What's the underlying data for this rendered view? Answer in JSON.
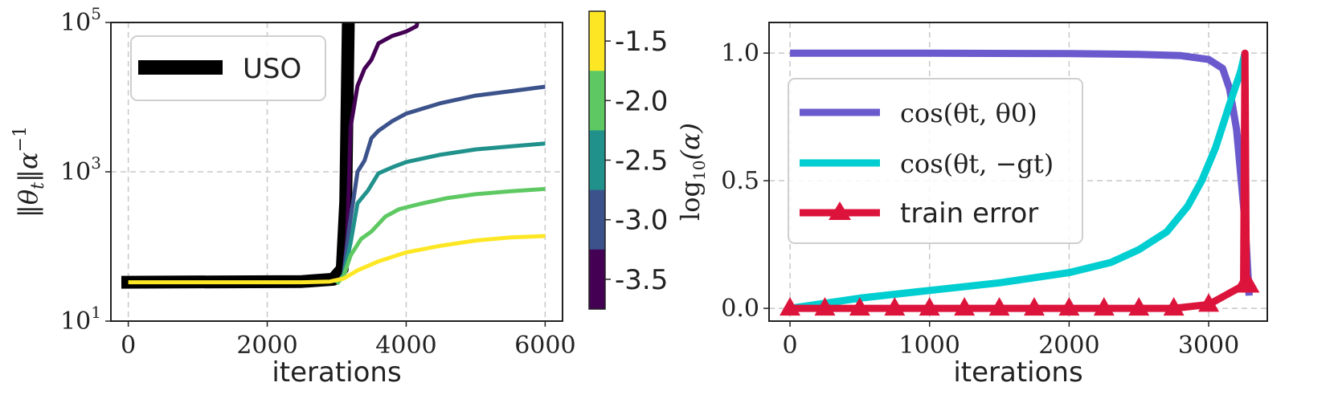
{
  "chart_data": [
    {
      "type": "line",
      "title": "",
      "xlabel": "iterations",
      "ylabel": "‖θt‖α⁻¹",
      "ylabel_parts": {
        "main": "‖θ",
        "sub": "t",
        "mid": "‖α",
        "sup": "−1"
      },
      "yscale": "log",
      "xlim": [
        -250,
        6250
      ],
      "ylim_log10": [
        1,
        5
      ],
      "xticks": [
        0,
        2000,
        4000,
        6000
      ],
      "xtick_labels": [
        "0",
        "2000",
        "4000",
        "6000"
      ],
      "yticks_log10": [
        1,
        3,
        5
      ],
      "ytick_labels": [
        {
          "base": "10",
          "exp": "1"
        },
        {
          "base": "10",
          "exp": "3"
        },
        {
          "base": "10",
          "exp": "5"
        }
      ],
      "legend": {
        "position": "top-left",
        "entries": [
          {
            "label": "USO",
            "color": "#000000"
          }
        ]
      },
      "colorbar": {
        "label": "log10(α)",
        "label_parts": {
          "fn": "log",
          "sub": "10",
          "arg": "(α)"
        },
        "ticks": [
          "-1.5",
          "-2.0",
          "-2.5",
          "-3.0",
          "-3.5"
        ],
        "bands_top_to_bottom": [
          "#fde725",
          "#5ec962",
          "#21918c",
          "#3b528b",
          "#440154"
        ]
      },
      "series": [
        {
          "name": "USO",
          "color": "#000000",
          "points": [
            [
              -100,
              1.52
            ],
            [
              2500,
              1.53
            ],
            [
              2950,
              1.56
            ],
            [
              3080,
              1.7
            ],
            [
              3130,
              2.6
            ],
            [
              3170,
              5.2
            ]
          ]
        },
        {
          "name": "log10(α) = -3.5",
          "color": "#440154",
          "points": [
            [
              3000,
              1.5
            ],
            [
              3100,
              1.62
            ],
            [
              3150,
              2.1
            ],
            [
              3200,
              3.6
            ],
            [
              3300,
              4.15
            ],
            [
              3400,
              4.38
            ],
            [
              3500,
              4.5
            ],
            [
              3600,
              4.72
            ],
            [
              3800,
              4.82
            ],
            [
              4000,
              4.88
            ],
            [
              4150,
              4.95
            ],
            [
              4200,
              5.2
            ]
          ]
        },
        {
          "name": "log10(α) = -3.0",
          "color": "#3b528b",
          "points": [
            [
              3000,
              1.5
            ],
            [
              3100,
              1.62
            ],
            [
              3180,
              2.25
            ],
            [
              3300,
              3.0
            ],
            [
              3400,
              3.15
            ],
            [
              3500,
              3.45
            ],
            [
              3600,
              3.55
            ],
            [
              3800,
              3.68
            ],
            [
              4000,
              3.78
            ],
            [
              4500,
              3.92
            ],
            [
              5000,
              4.02
            ],
            [
              5500,
              4.08
            ],
            [
              6000,
              4.14
            ]
          ]
        },
        {
          "name": "log10(α) = -2.5",
          "color": "#21918c",
          "points": [
            [
              3000,
              1.5
            ],
            [
              3100,
              1.62
            ],
            [
              3200,
              2.05
            ],
            [
              3300,
              2.58
            ],
            [
              3450,
              2.75
            ],
            [
              3600,
              2.98
            ],
            [
              3800,
              3.06
            ],
            [
              4000,
              3.13
            ],
            [
              4500,
              3.23
            ],
            [
              5000,
              3.3
            ],
            [
              5500,
              3.34
            ],
            [
              6000,
              3.38
            ]
          ]
        },
        {
          "name": "log10(α) = -2.0",
          "color": "#5ec962",
          "points": [
            [
              3000,
              1.5
            ],
            [
              3100,
              1.6
            ],
            [
              3200,
              1.88
            ],
            [
              3350,
              2.1
            ],
            [
              3500,
              2.2
            ],
            [
              3700,
              2.4
            ],
            [
              3900,
              2.5
            ],
            [
              4200,
              2.57
            ],
            [
              4600,
              2.65
            ],
            [
              5000,
              2.7
            ],
            [
              5500,
              2.74
            ],
            [
              6000,
              2.77
            ]
          ]
        },
        {
          "name": "log10(α) = -1.5",
          "color": "#fde725",
          "points": [
            [
              0,
              1.52
            ],
            [
              2500,
              1.52
            ],
            [
              2900,
              1.53
            ],
            [
              3100,
              1.57
            ],
            [
              3300,
              1.68
            ],
            [
              3600,
              1.8
            ],
            [
              4000,
              1.92
            ],
            [
              4500,
              2.01
            ],
            [
              5000,
              2.08
            ],
            [
              5500,
              2.12
            ],
            [
              6000,
              2.14
            ]
          ]
        }
      ]
    },
    {
      "type": "line",
      "title": "",
      "xlabel": "iterations",
      "ylabel": "",
      "xlim": [
        -150,
        3420
      ],
      "ylim": [
        -0.05,
        1.12
      ],
      "xticks": [
        0,
        1000,
        2000,
        3000
      ],
      "xtick_labels": [
        "0",
        "1000",
        "2000",
        "3000"
      ],
      "yticks": [
        0.0,
        0.5,
        1.0
      ],
      "ytick_labels": [
        "0.0",
        "0.5",
        "1.0"
      ],
      "legend": {
        "position": "center-left",
        "entries": [
          {
            "label": "cos(θt, θ0)",
            "color": "#6a5acd"
          },
          {
            "label": "cos(θt, −gt)",
            "color": "#00ced1"
          },
          {
            "label": "train error",
            "color": "#dc143c",
            "marker": "triangle"
          }
        ]
      },
      "series": [
        {
          "name": "cos(θt, θ0)",
          "color": "#6a5acd",
          "points": [
            [
              0,
              1.0
            ],
            [
              1000,
              1.0
            ],
            [
              2000,
              0.998
            ],
            [
              2500,
              0.995
            ],
            [
              2800,
              0.99
            ],
            [
              3000,
              0.975
            ],
            [
              3100,
              0.94
            ],
            [
              3150,
              0.86
            ],
            [
              3200,
              0.7
            ],
            [
              3250,
              0.4
            ],
            [
              3270,
              0.25
            ],
            [
              3290,
              0.05
            ]
          ]
        },
        {
          "name": "cos(θt, −gt)",
          "color": "#00ced1",
          "points": [
            [
              0,
              0.0
            ],
            [
              500,
              0.04
            ],
            [
              1000,
              0.07
            ],
            [
              1500,
              0.1
            ],
            [
              2000,
              0.14
            ],
            [
              2300,
              0.18
            ],
            [
              2500,
              0.23
            ],
            [
              2700,
              0.3
            ],
            [
              2850,
              0.4
            ],
            [
              2950,
              0.5
            ],
            [
              3050,
              0.63
            ],
            [
              3150,
              0.8
            ],
            [
              3230,
              0.93
            ],
            [
              3260,
              1.0
            ]
          ]
        },
        {
          "name": "train error",
          "color": "#dc143c",
          "marker": "triangle",
          "points": [
            [
              0,
              0.0
            ],
            [
              250,
              0.0
            ],
            [
              500,
              0.0
            ],
            [
              750,
              0.0
            ],
            [
              1000,
              0.0
            ],
            [
              1250,
              0.0
            ],
            [
              1500,
              0.0
            ],
            [
              1750,
              0.0
            ],
            [
              2000,
              0.0
            ],
            [
              2250,
              0.0
            ],
            [
              2500,
              0.0
            ],
            [
              2750,
              0.0
            ],
            [
              3000,
              0.015
            ],
            [
              3250,
              0.09
            ],
            [
              3260,
              1.0
            ],
            [
              3270,
              0.09
            ],
            [
              3290,
              0.09
            ]
          ]
        }
      ]
    }
  ]
}
